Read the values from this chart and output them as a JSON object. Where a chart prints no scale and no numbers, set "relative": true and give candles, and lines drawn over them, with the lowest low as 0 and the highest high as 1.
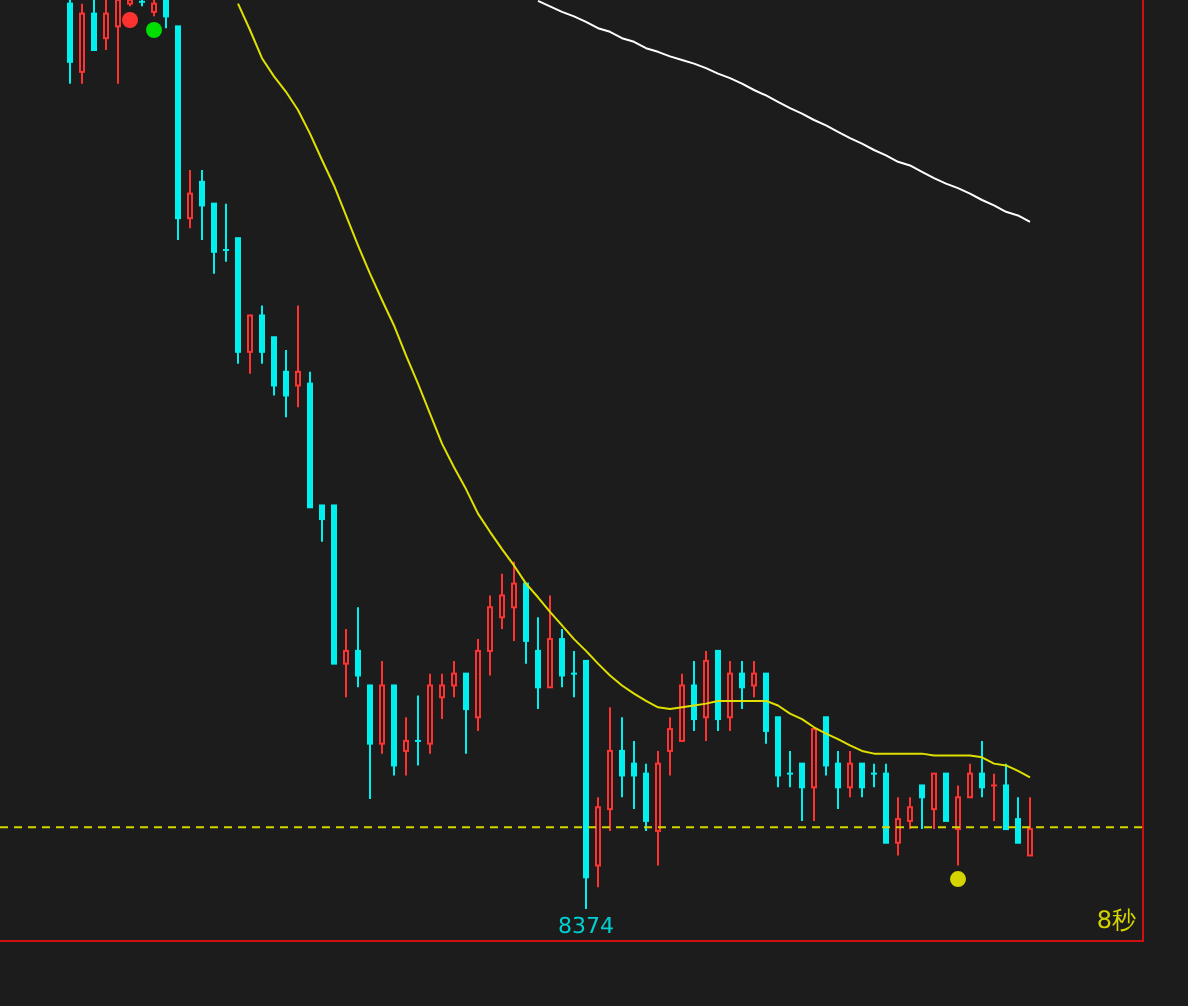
{
  "chart_data": {
    "type": "candlestick",
    "relative": true,
    "categories": [
      null,
      null,
      null,
      null,
      null,
      null,
      null,
      null,
      null,
      null,
      null,
      null,
      null,
      null,
      null,
      null,
      null,
      null,
      null,
      null,
      null,
      null,
      null,
      null,
      null,
      null,
      null,
      null,
      null,
      null,
      null,
      null,
      null,
      null,
      null,
      null,
      null,
      null,
      null,
      null,
      null,
      null,
      null,
      null,
      null,
      null,
      null,
      null,
      null,
      null,
      null,
      null,
      null,
      null,
      null,
      null,
      null,
      null,
      null,
      null,
      null,
      null,
      null,
      null,
      null,
      null,
      null,
      null,
      null,
      null,
      null,
      null,
      null,
      null,
      null,
      null,
      null,
      null,
      null,
      null,
      null
    ],
    "ohlc": [
      [
        0.996,
        1,
        0.908,
        0.932
      ],
      [
        0.921,
        0.996,
        0.908,
        0.985
      ],
      [
        0.985,
        1,
        0.945,
        0.945
      ],
      [
        0.958,
        1,
        0.945,
        0.985
      ],
      [
        0.971,
        1,
        0.908,
        1
      ],
      [
        0.996,
        1,
        0.993,
        1
      ],
      [
        0.998,
        1,
        0.993,
        0.996
      ],
      [
        0.987,
        1,
        0.982,
        0.996
      ],
      [
        1,
        1,
        0.969,
        0.982
      ],
      [
        0.971,
        0.971,
        0.736,
        0.76
      ],
      [
        0.76,
        0.813,
        0.749,
        0.787
      ],
      [
        0.8,
        0.813,
        0.736,
        0.774
      ],
      [
        0.776,
        0.776,
        0.699,
        0.723
      ],
      [
        0.725,
        0.776,
        0.712,
        0.725
      ],
      [
        0.738,
        0.738,
        0.6,
        0.613
      ],
      [
        0.613,
        0.653,
        0.589,
        0.653
      ],
      [
        0.653,
        0.664,
        0.6,
        0.613
      ],
      [
        0.629,
        0.629,
        0.565,
        0.576
      ],
      [
        0.591,
        0.615,
        0.541,
        0.565
      ],
      [
        0.576,
        0.664,
        0.552,
        0.591
      ],
      [
        0.578,
        0.591,
        0.442,
        0.442
      ],
      [
        0.444,
        0.444,
        0.404,
        0.429
      ],
      [
        0.444,
        0.444,
        0.27,
        0.27
      ],
      [
        0.27,
        0.308,
        0.233,
        0.284
      ],
      [
        0.284,
        0.332,
        0.244,
        0.257
      ],
      [
        0.246,
        0.246,
        0.121,
        0.182
      ],
      [
        0.182,
        0.273,
        0.171,
        0.246
      ],
      [
        0.246,
        0.246,
        0.147,
        0.158
      ],
      [
        0.174,
        0.211,
        0.147,
        0.185
      ],
      [
        0.185,
        0.235,
        0.158,
        0.185
      ],
      [
        0.182,
        0.259,
        0.171,
        0.246
      ],
      [
        0.233,
        0.259,
        0.209,
        0.246
      ],
      [
        0.246,
        0.273,
        0.233,
        0.259
      ],
      [
        0.259,
        0.259,
        0.171,
        0.22
      ],
      [
        0.211,
        0.297,
        0.196,
        0.284
      ],
      [
        0.284,
        0.345,
        0.257,
        0.332
      ],
      [
        0.321,
        0.369,
        0.308,
        0.345
      ],
      [
        0.332,
        0.382,
        0.295,
        0.358
      ],
      [
        0.358,
        0.358,
        0.27,
        0.295
      ],
      [
        0.284,
        0.321,
        0.22,
        0.244
      ],
      [
        0.244,
        0.345,
        0.244,
        0.297
      ],
      [
        0.297,
        0.308,
        0.244,
        0.257
      ],
      [
        0.259,
        0.284,
        0.233,
        0.259
      ],
      [
        0.273,
        0.273,
        0,
        0.035
      ],
      [
        0.048,
        0.123,
        0.024,
        0.112
      ],
      [
        0.11,
        0.222,
        0.086,
        0.174
      ],
      [
        0.174,
        0.211,
        0.123,
        0.147
      ],
      [
        0.16,
        0.185,
        0.11,
        0.147
      ],
      [
        0.149,
        0.16,
        0.086,
        0.097
      ],
      [
        0.086,
        0.174,
        0.048,
        0.16
      ],
      [
        0.174,
        0.211,
        0.147,
        0.198
      ],
      [
        0.185,
        0.259,
        0.185,
        0.246
      ],
      [
        0.246,
        0.273,
        0.196,
        0.209
      ],
      [
        0.211,
        0.284,
        0.185,
        0.273
      ],
      [
        0.284,
        0.284,
        0.196,
        0.209
      ],
      [
        0.211,
        0.273,
        0.196,
        0.259
      ],
      [
        0.259,
        0.273,
        0.22,
        0.244
      ],
      [
        0.246,
        0.273,
        0.233,
        0.259
      ],
      [
        0.259,
        0.259,
        0.182,
        0.196
      ],
      [
        0.211,
        0.211,
        0.134,
        0.147
      ],
      [
        0.149,
        0.174,
        0.134,
        0.149
      ],
      [
        0.16,
        0.16,
        0.097,
        0.134
      ],
      [
        0.134,
        0.198,
        0.097,
        0.198
      ],
      [
        0.211,
        0.211,
        0.147,
        0.158
      ],
      [
        0.16,
        0.174,
        0.11,
        0.134
      ],
      [
        0.134,
        0.174,
        0.123,
        0.16
      ],
      [
        0.16,
        0.16,
        0.123,
        0.134
      ],
      [
        0.149,
        0.16,
        0.134,
        0.149
      ],
      [
        0.149,
        0.16,
        0.073,
        0.073
      ],
      [
        0.073,
        0.123,
        0.059,
        0.099
      ],
      [
        0.097,
        0.123,
        0.088,
        0.112
      ],
      [
        0.136,
        0.136,
        0.088,
        0.123
      ],
      [
        0.11,
        0.149,
        0.088,
        0.149
      ],
      [
        0.149,
        0.149,
        0.097,
        0.097
      ],
      [
        0.088,
        0.136,
        0.048,
        0.123
      ],
      [
        0.123,
        0.16,
        0.123,
        0.149
      ],
      [
        0.149,
        0.185,
        0.123,
        0.134
      ],
      [
        0.136,
        0.149,
        0.097,
        0.136
      ],
      [
        0.136,
        0.16,
        0.088,
        0.088
      ],
      [
        0.099,
        0.123,
        0.073,
        0.073
      ],
      [
        0.059,
        0.123,
        0.059,
        0.088
      ]
    ],
    "colors": [
      "#00f0f0",
      "#ff3232",
      "#00f0f0",
      "#ff3232",
      "#ff3232",
      "#ff3232",
      "#00f0f0",
      "#ff3232",
      "#00f0f0",
      "#00f0f0",
      "#ff3232",
      "#00f0f0",
      "#00f0f0",
      "#00f0f0",
      "#00f0f0",
      "#ff3232",
      "#00f0f0",
      "#00f0f0",
      "#00f0f0",
      "#ff3232",
      "#00f0f0",
      "#00f0f0",
      "#00f0f0",
      "#ff3232",
      "#00f0f0",
      "#00f0f0",
      "#ff3232",
      "#00f0f0",
      "#ff3232",
      "#00f0f0",
      "#ff3232",
      "#ff3232",
      "#ff3232",
      "#00f0f0",
      "#ff3232",
      "#ff3232",
      "#ff3232",
      "#ff3232",
      "#00f0f0",
      "#00f0f0",
      "#ff3232",
      "#00f0f0",
      "#00f0f0",
      "#00f0f0",
      "#ff3232",
      "#ff3232",
      "#00f0f0",
      "#00f0f0",
      "#00f0f0",
      "#ff3232",
      "#ff3232",
      "#ff3232",
      "#00f0f0",
      "#ff3232",
      "#00f0f0",
      "#ff3232",
      "#00f0f0",
      "#ff3232",
      "#00f0f0",
      "#00f0f0",
      "#00f0f0",
      "#00f0f0",
      "#ff3232",
      "#00f0f0",
      "#00f0f0",
      "#ff3232",
      "#00f0f0",
      "#00f0f0",
      "#00f0f0",
      "#ff3232",
      "#ff3232",
      "#00f0f0",
      "#ff3232",
      "#00f0f0",
      "#ff3232",
      "#ff3232",
      "#00f0f0",
      "#ff3232",
      "#00f0f0",
      "#00f0f0",
      "#ff3232"
    ],
    "series": [
      {
        "type": "line",
        "color": "#e0e000",
        "values": [
          null,
          null,
          null,
          null,
          null,
          null,
          null,
          null,
          null,
          null,
          null,
          null,
          null,
          null,
          0.996,
          0.967,
          0.936,
          0.916,
          0.899,
          0.879,
          0.853,
          0.824,
          0.796,
          0.763,
          0.73,
          0.699,
          0.67,
          0.642,
          0.609,
          0.578,
          0.545,
          0.512,
          0.486,
          0.462,
          0.435,
          0.415,
          0.396,
          0.378,
          0.358,
          0.343,
          0.327,
          0.312,
          0.297,
          0.284,
          0.27,
          0.257,
          0.246,
          0.237,
          0.229,
          0.222,
          0.22,
          0.222,
          0.224,
          0.226,
          0.229,
          0.229,
          0.229,
          0.229,
          0.229,
          0.224,
          0.215,
          0.209,
          0.2,
          0.193,
          0.187,
          0.18,
          0.174,
          0.171,
          0.171,
          0.171,
          0.171,
          0.171,
          0.169,
          0.169,
          0.169,
          0.169,
          0.167,
          0.16,
          0.158,
          0.152,
          0.145
        ]
      },
      {
        "type": "line",
        "color": "#ffffff",
        "values": [
          null,
          null,
          null,
          null,
          null,
          null,
          null,
          null,
          null,
          null,
          null,
          null,
          null,
          null,
          null,
          null,
          null,
          null,
          null,
          null,
          null,
          null,
          null,
          null,
          null,
          null,
          null,
          null,
          null,
          null,
          null,
          null,
          null,
          null,
          null,
          null,
          null,
          null,
          null,
          0.999,
          0.993,
          0.987,
          0.982,
          0.976,
          0.969,
          0.965,
          0.958,
          0.954,
          0.947,
          0.943,
          0.938,
          0.934,
          0.93,
          0.925,
          0.919,
          0.914,
          0.908,
          0.901,
          0.895,
          0.888,
          0.881,
          0.875,
          0.868,
          0.862,
          0.855,
          0.848,
          0.842,
          0.835,
          0.829,
          0.822,
          0.818,
          0.811,
          0.804,
          0.798,
          0.793,
          0.787,
          0.78,
          0.774,
          0.767,
          0.763,
          0.756
        ]
      },
      {
        "type": "scatter",
        "color": "#ff3232",
        "values": [
          null,
          null,
          null,
          null,
          null,
          0.978,
          null,
          null,
          null,
          null,
          null,
          null,
          null,
          null,
          null,
          null,
          null,
          null,
          null,
          null,
          null,
          null,
          null,
          null,
          null,
          null,
          null,
          null,
          null,
          null,
          null,
          null,
          null,
          null,
          null,
          null,
          null,
          null,
          null,
          null,
          null,
          null,
          null,
          null,
          null,
          null,
          null,
          null,
          null,
          null,
          null,
          null,
          null,
          null,
          null,
          null,
          null,
          null,
          null,
          null,
          null,
          null,
          null,
          null,
          null,
          null,
          null,
          null,
          null,
          null,
          null,
          null,
          null,
          null,
          null,
          null,
          null,
          null,
          null,
          null,
          null
        ]
      },
      {
        "type": "scatter",
        "color": "#00dd00",
        "values": [
          null,
          null,
          null,
          null,
          null,
          null,
          null,
          0.967,
          null,
          null,
          null,
          null,
          null,
          null,
          null,
          null,
          null,
          null,
          null,
          null,
          null,
          null,
          null,
          null,
          null,
          null,
          null,
          null,
          null,
          null,
          null,
          null,
          null,
          null,
          null,
          null,
          null,
          null,
          null,
          null,
          null,
          null,
          null,
          null,
          null,
          null,
          null,
          null,
          null,
          null,
          null,
          null,
          null,
          null,
          null,
          null,
          null,
          null,
          null,
          null,
          null,
          null,
          null,
          null,
          null,
          null,
          null,
          null,
          null,
          null,
          null,
          null,
          null,
          null,
          null,
          null,
          null,
          null,
          null,
          null,
          null
        ]
      },
      {
        "type": "scatter",
        "color": "#d4d400",
        "values": [
          null,
          null,
          null,
          null,
          null,
          null,
          null,
          null,
          null,
          null,
          null,
          null,
          null,
          null,
          null,
          null,
          null,
          null,
          null,
          null,
          null,
          null,
          null,
          null,
          null,
          null,
          null,
          null,
          null,
          null,
          null,
          null,
          null,
          null,
          null,
          null,
          null,
          null,
          null,
          null,
          null,
          null,
          null,
          null,
          null,
          null,
          null,
          null,
          null,
          null,
          null,
          null,
          null,
          null,
          null,
          null,
          null,
          null,
          null,
          null,
          null,
          null,
          null,
          null,
          null,
          null,
          null,
          null,
          null,
          null,
          null,
          null,
          null,
          null,
          0.033,
          null,
          null,
          null,
          null,
          null,
          null
        ]
      }
    ],
    "ref_lines": [
      {
        "axis": "y",
        "value": 0.09,
        "color": "#d4d400",
        "line_style": "dashed"
      }
    ],
    "annotations": [
      {
        "text": "8374",
        "y": 0
      },
      "8秒"
    ]
  }
}
